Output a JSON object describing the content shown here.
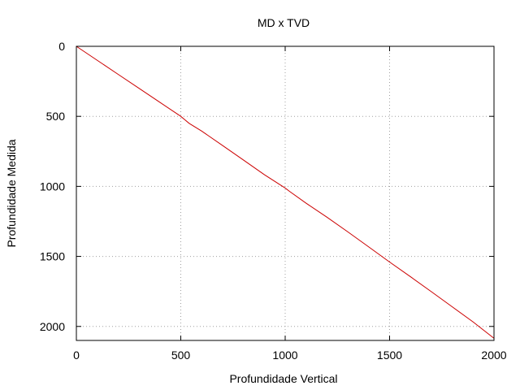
{
  "chart_data": {
    "type": "line",
    "title": "MD x TVD",
    "xlabel": "Profundidade Vertical",
    "ylabel": "Profundidade Medida",
    "xlim": [
      0,
      2000
    ],
    "ylim": [
      0,
      2100
    ],
    "y_inverted": true,
    "grid": true,
    "legend": "none",
    "x_ticks": [
      {
        "value": 0,
        "label": "0"
      },
      {
        "value": 500,
        "label": "500"
      },
      {
        "value": 1000,
        "label": "1000"
      },
      {
        "value": 1500,
        "label": "1500"
      },
      {
        "value": 2000,
        "label": "2000"
      }
    ],
    "y_ticks": [
      {
        "value": 0,
        "label": "0"
      },
      {
        "value": 500,
        "label": "500"
      },
      {
        "value": 1000,
        "label": "1000"
      },
      {
        "value": 1500,
        "label": "1500"
      },
      {
        "value": 2000,
        "label": "2000"
      }
    ],
    "series": [
      {
        "color": "#cc0000",
        "x": [
          0,
          100,
          200,
          300,
          400,
          490,
          500,
          520,
          540,
          600,
          700,
          800,
          900,
          1000,
          1020,
          1100,
          1200,
          1300,
          1400,
          1500,
          1600,
          1700,
          1800,
          1900,
          2000
        ],
        "y": [
          0,
          100,
          200,
          300,
          400,
          490,
          500,
          525,
          550,
          605,
          708,
          812,
          916,
          1012,
          1035,
          1120,
          1220,
          1325,
          1432,
          1540,
          1645,
          1752,
          1860,
          1968,
          2085
        ]
      }
    ],
    "colors": {
      "line": "#cc0000",
      "grid": "#a0a0a0",
      "axis": "#000000"
    }
  }
}
